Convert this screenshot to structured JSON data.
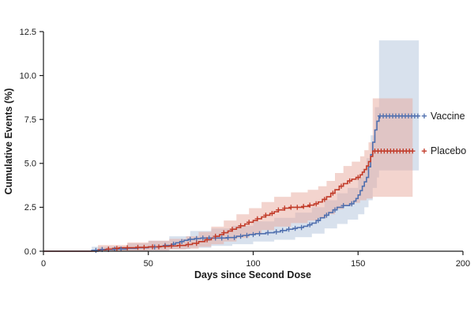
{
  "chart_data": {
    "type": "line",
    "subtype": "kaplan-meier-cumulative-incidence",
    "title": "",
    "xlabel": "Days since Second Dose",
    "ylabel": "Cumulative Events (%)",
    "xlim": [
      0,
      200
    ],
    "ylim": [
      0,
      12.5
    ],
    "xticks": [
      0,
      50,
      100,
      150,
      200
    ],
    "yticks": [
      0,
      2.5,
      5,
      7.5,
      10,
      12.5
    ],
    "xtick_labels": [
      "0",
      "50",
      "100",
      "150",
      "200"
    ],
    "ytick_labels": [
      "0.0",
      "2.5",
      "5.0",
      "7.5",
      "10.0",
      "12.5"
    ],
    "grid": false,
    "legend_position": "right-inline",
    "series": [
      {
        "name": "Vaccine",
        "color": "#4f6fae",
        "band_color": "#a8bcd8",
        "band_opacity": 0.45,
        "steps": [
          [
            0,
            0
          ],
          [
            23,
            0
          ],
          [
            23,
            0.05
          ],
          [
            27,
            0.1
          ],
          [
            34,
            0.12
          ],
          [
            40,
            0.16
          ],
          [
            45,
            0.2
          ],
          [
            50,
            0.24
          ],
          [
            55,
            0.28
          ],
          [
            58,
            0.33
          ],
          [
            61,
            0.4
          ],
          [
            63,
            0.48
          ],
          [
            65,
            0.55
          ],
          [
            67,
            0.62
          ],
          [
            69,
            0.68
          ],
          [
            72,
            0.72
          ],
          [
            75,
            0.75
          ],
          [
            88,
            0.78
          ],
          [
            92,
            0.85
          ],
          [
            95,
            0.9
          ],
          [
            98,
            0.95
          ],
          [
            101,
            1.0
          ],
          [
            106,
            1.05
          ],
          [
            110,
            1.1
          ],
          [
            113,
            1.18
          ],
          [
            116,
            1.25
          ],
          [
            119,
            1.3
          ],
          [
            121,
            1.35
          ],
          [
            124,
            1.42
          ],
          [
            126,
            1.5
          ],
          [
            128,
            1.6
          ],
          [
            130,
            1.75
          ],
          [
            132,
            1.9
          ],
          [
            134,
            2.05
          ],
          [
            136,
            2.2
          ],
          [
            138,
            2.35
          ],
          [
            140,
            2.5
          ],
          [
            143,
            2.6
          ],
          [
            146,
            2.7
          ],
          [
            148,
            2.85
          ],
          [
            149,
            3.0
          ],
          [
            150,
            3.2
          ],
          [
            151,
            3.45
          ],
          [
            152,
            3.7
          ],
          [
            153,
            3.95
          ],
          [
            154,
            4.2
          ],
          [
            155,
            4.8
          ],
          [
            156,
            5.5
          ],
          [
            157,
            6.2
          ],
          [
            158,
            6.9
          ],
          [
            159,
            7.4
          ],
          [
            160,
            7.7
          ],
          [
            179,
            7.7
          ]
        ],
        "band_upper": [
          [
            23,
            0.25
          ],
          [
            40,
            0.45
          ],
          [
            50,
            0.6
          ],
          [
            60,
            0.85
          ],
          [
            70,
            1.15
          ],
          [
            80,
            1.3
          ],
          [
            90,
            1.45
          ],
          [
            100,
            1.7
          ],
          [
            110,
            1.9
          ],
          [
            120,
            2.2
          ],
          [
            128,
            2.5
          ],
          [
            134,
            2.9
          ],
          [
            140,
            3.3
          ],
          [
            145,
            3.6
          ],
          [
            150,
            4.2
          ],
          [
            152,
            4.7
          ],
          [
            154,
            5.3
          ],
          [
            156,
            6.6
          ],
          [
            158,
            8.2
          ],
          [
            160,
            12.0
          ],
          [
            179,
            12.0
          ]
        ],
        "band_lower": [
          [
            23,
            0
          ],
          [
            50,
            0.04
          ],
          [
            60,
            0.1
          ],
          [
            70,
            0.2
          ],
          [
            80,
            0.3
          ],
          [
            90,
            0.4
          ],
          [
            100,
            0.55
          ],
          [
            110,
            0.65
          ],
          [
            120,
            0.8
          ],
          [
            128,
            1.0
          ],
          [
            134,
            1.3
          ],
          [
            140,
            1.55
          ],
          [
            145,
            1.8
          ],
          [
            150,
            2.1
          ],
          [
            153,
            2.5
          ],
          [
            155,
            2.9
          ],
          [
            157,
            3.6
          ],
          [
            159,
            4.2
          ],
          [
            160,
            4.6
          ],
          [
            179,
            4.6
          ]
        ],
        "censor_x": [
          25,
          28,
          31,
          34,
          37,
          53,
          58,
          62,
          66,
          70,
          73,
          76,
          79,
          82,
          85,
          88,
          91,
          94,
          97,
          100,
          103,
          107,
          111,
          114,
          117,
          120,
          123,
          127,
          131,
          135,
          139,
          143,
          147,
          160.5,
          162,
          163.5,
          165,
          166.5,
          168,
          169.5,
          171,
          172.5,
          174,
          175.5,
          177,
          178.5
        ]
      },
      {
        "name": "Placebo",
        "color": "#c13a28",
        "band_color": "#e7a99d",
        "band_opacity": 0.5,
        "steps": [
          [
            0,
            0
          ],
          [
            26,
            0
          ],
          [
            26,
            0.08
          ],
          [
            30,
            0.12
          ],
          [
            33,
            0.16
          ],
          [
            36,
            0.2
          ],
          [
            44,
            0.22
          ],
          [
            50,
            0.25
          ],
          [
            56,
            0.28
          ],
          [
            60,
            0.3
          ],
          [
            64,
            0.33
          ],
          [
            68,
            0.38
          ],
          [
            71,
            0.45
          ],
          [
            74,
            0.55
          ],
          [
            77,
            0.65
          ],
          [
            80,
            0.75
          ],
          [
            82,
            0.85
          ],
          [
            84,
            0.95
          ],
          [
            86,
            1.05
          ],
          [
            88,
            1.15
          ],
          [
            90,
            1.25
          ],
          [
            92,
            1.35
          ],
          [
            94,
            1.45
          ],
          [
            96,
            1.55
          ],
          [
            98,
            1.65
          ],
          [
            100,
            1.75
          ],
          [
            102,
            1.85
          ],
          [
            104,
            1.95
          ],
          [
            106,
            2.05
          ],
          [
            108,
            2.15
          ],
          [
            110,
            2.25
          ],
          [
            112,
            2.35
          ],
          [
            115,
            2.45
          ],
          [
            118,
            2.5
          ],
          [
            124,
            2.55
          ],
          [
            127,
            2.62
          ],
          [
            129,
            2.7
          ],
          [
            131,
            2.8
          ],
          [
            133,
            2.95
          ],
          [
            135,
            3.1
          ],
          [
            137,
            3.3
          ],
          [
            139,
            3.5
          ],
          [
            141,
            3.7
          ],
          [
            143,
            3.85
          ],
          [
            145,
            4.0
          ],
          [
            147,
            4.1
          ],
          [
            149,
            4.2
          ],
          [
            151,
            4.35
          ],
          [
            152,
            4.5
          ],
          [
            153,
            4.65
          ],
          [
            154,
            4.85
          ],
          [
            155,
            5.1
          ],
          [
            156,
            5.4
          ],
          [
            157,
            5.7
          ],
          [
            176,
            5.7
          ]
        ],
        "band_upper": [
          [
            26,
            0.35
          ],
          [
            40,
            0.5
          ],
          [
            50,
            0.6
          ],
          [
            60,
            0.7
          ],
          [
            68,
            0.85
          ],
          [
            74,
            1.1
          ],
          [
            80,
            1.4
          ],
          [
            86,
            1.75
          ],
          [
            92,
            2.1
          ],
          [
            98,
            2.45
          ],
          [
            104,
            2.8
          ],
          [
            110,
            3.1
          ],
          [
            118,
            3.35
          ],
          [
            126,
            3.5
          ],
          [
            131,
            3.7
          ],
          [
            135,
            4.0
          ],
          [
            139,
            4.45
          ],
          [
            143,
            4.85
          ],
          [
            147,
            5.1
          ],
          [
            151,
            5.4
          ],
          [
            153,
            5.75
          ],
          [
            155,
            6.2
          ],
          [
            157,
            8.7
          ],
          [
            176,
            8.7
          ]
        ],
        "band_lower": [
          [
            26,
            0
          ],
          [
            50,
            0.05
          ],
          [
            60,
            0.1
          ],
          [
            68,
            0.15
          ],
          [
            74,
            0.25
          ],
          [
            80,
            0.4
          ],
          [
            86,
            0.55
          ],
          [
            92,
            0.75
          ],
          [
            98,
            0.95
          ],
          [
            104,
            1.2
          ],
          [
            110,
            1.4
          ],
          [
            118,
            1.6
          ],
          [
            126,
            1.75
          ],
          [
            131,
            1.9
          ],
          [
            135,
            2.1
          ],
          [
            139,
            2.4
          ],
          [
            143,
            2.6
          ],
          [
            147,
            2.75
          ],
          [
            151,
            2.9
          ],
          [
            154,
            3.0
          ],
          [
            157,
            3.1
          ],
          [
            176,
            3.1
          ]
        ],
        "censor_x": [
          31,
          35,
          40,
          45,
          48,
          52,
          55,
          58,
          61,
          65,
          69,
          73,
          78,
          82,
          86,
          90,
          94,
          98,
          102,
          106,
          109,
          112,
          115,
          118,
          121,
          124,
          127,
          130,
          134,
          138,
          142,
          146,
          150,
          158,
          159.5,
          161,
          162.5,
          164,
          165.5,
          167,
          168.5,
          170,
          171.5,
          173,
          174.5,
          176
        ]
      }
    ]
  }
}
